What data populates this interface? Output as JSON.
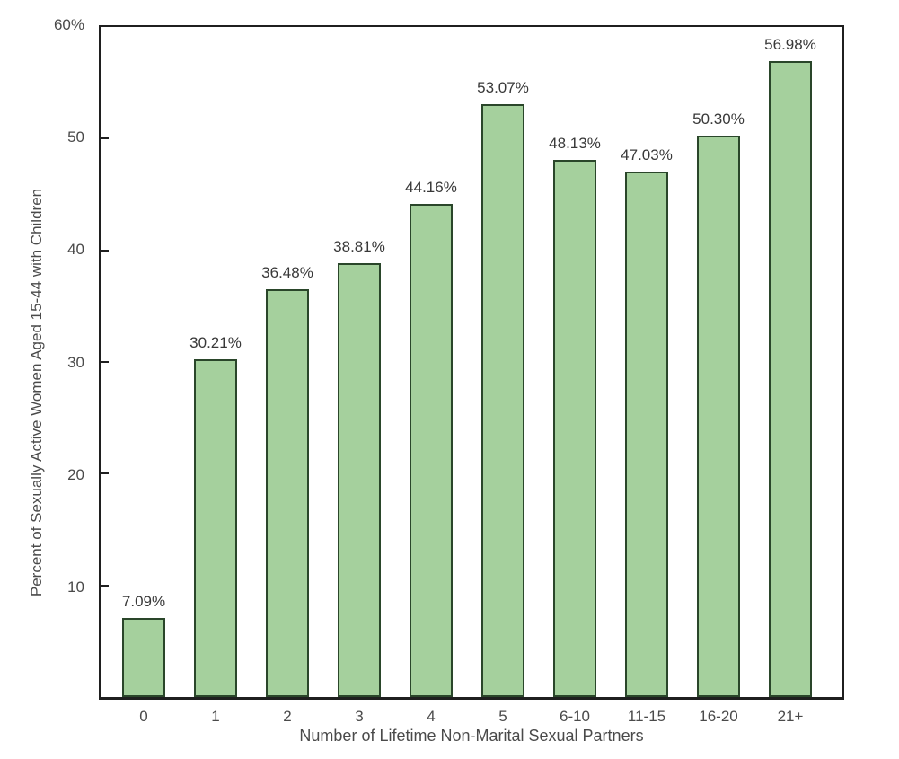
{
  "chart_data": {
    "type": "bar",
    "title": "",
    "xlabel": "Number of Lifetime Non-Marital Sexual Partners",
    "ylabel": "Percent of Sexually Active Women Aged 15-44 with Children",
    "categories": [
      "0",
      "1",
      "2",
      "3",
      "4",
      "5",
      "6-10",
      "11-15",
      "16-20",
      "21+"
    ],
    "values": [
      7.09,
      30.21,
      36.48,
      38.81,
      44.16,
      53.07,
      48.13,
      47.03,
      50.3,
      56.98
    ],
    "bar_labels": [
      "7.09%",
      "30.21%",
      "36.48%",
      "38.81%",
      "44.16%",
      "53.07%",
      "48.13%",
      "47.03%",
      "50.30%",
      "56.98%"
    ],
    "ylim": [
      0,
      60
    ],
    "yticks": [
      {
        "value": 10,
        "label": "10"
      },
      {
        "value": 20,
        "label": "20"
      },
      {
        "value": 30,
        "label": "30"
      },
      {
        "value": 40,
        "label": "40"
      },
      {
        "value": 50,
        "label": "50"
      },
      {
        "value": 60,
        "label": "60%"
      }
    ],
    "grid": false,
    "legend": "none"
  },
  "colors": {
    "bar_fill": "#a5d09d",
    "bar_border": "#2a462a",
    "axis_line": "#1f1f1f",
    "value_label_text": "#383838",
    "tick_label_text": "#4a4a4a",
    "background": "#ffffff"
  }
}
